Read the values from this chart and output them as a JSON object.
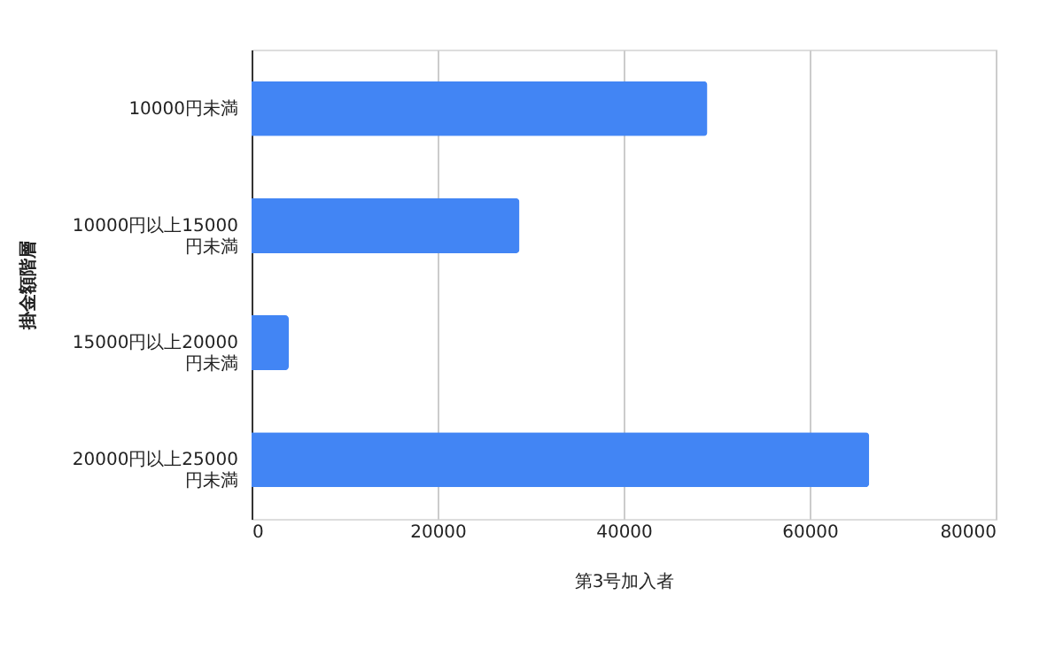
{
  "chart_data": {
    "type": "bar",
    "orientation": "horizontal",
    "categories": [
      "10000円未満",
      "10000円以上15000円未満",
      "15000円以上20000円未満",
      "20000円以上25000円未満"
    ],
    "values": [
      49000,
      28800,
      4000,
      66400
    ],
    "color": "#4285f4",
    "xlim": [
      0,
      80000
    ],
    "xticks": [
      0,
      20000,
      40000,
      60000,
      80000
    ],
    "xlabel": "第3号加入者",
    "ylabel": "掛金額階層",
    "grid": "x"
  }
}
